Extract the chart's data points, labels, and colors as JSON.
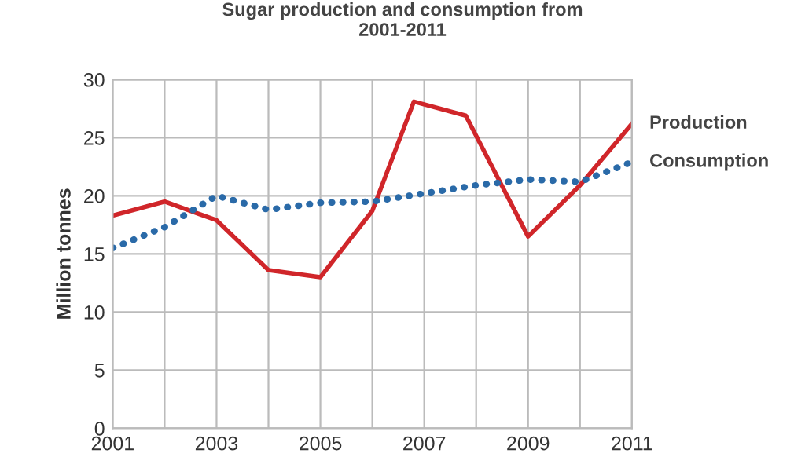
{
  "chart_data": {
    "type": "line",
    "title": "Sugar production and consumption from\n2001-2011",
    "ylabel": "Million tonnes",
    "series": [
      {
        "name": "Production",
        "color": "#d0262a",
        "line_style": "solid",
        "x": [
          2001,
          2002,
          2003,
          2004,
          2005,
          2006,
          2006.8,
          2007.8,
          2009,
          2010,
          2011
        ],
        "values": [
          18.3,
          19.5,
          17.9,
          13.6,
          13,
          18.7,
          28.1,
          26.9,
          16.5,
          20.9,
          26.2
        ]
      },
      {
        "name": "Consumption",
        "color": "#2a6aa8",
        "line_style": "dotted",
        "x": [
          2001,
          2002,
          2003,
          2004,
          2005,
          2006,
          2007,
          2008,
          2009,
          2010,
          2011
        ],
        "values": [
          15.5,
          17.3,
          20,
          18.8,
          19.4,
          19.5,
          20.2,
          20.9,
          21.4,
          21.2,
          22.9
        ]
      }
    ],
    "xlim": [
      2001,
      2011
    ],
    "xticks": [
      2001,
      {
        "value": 2002,
        "label": null
      },
      2003,
      {
        "value": 2004,
        "label": null
      },
      2005,
      {
        "value": 2006,
        "label": null
      },
      2007,
      {
        "value": 2008,
        "label": null
      },
      2009,
      {
        "value": 2010,
        "label": null
      },
      2011
    ],
    "ylim": [
      0,
      30
    ],
    "yticks": [
      0,
      5,
      10,
      15,
      20,
      25,
      30
    ],
    "grid": true,
    "legend": false,
    "marker": "none"
  }
}
